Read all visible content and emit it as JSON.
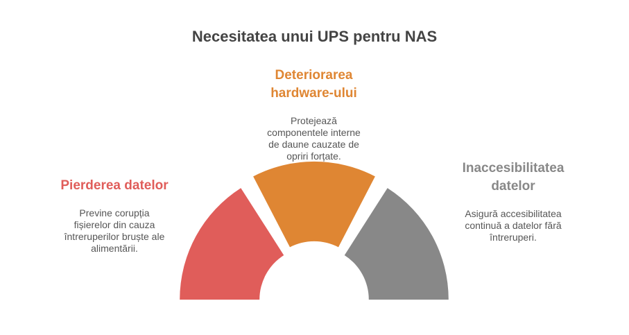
{
  "title": "Necesitatea unui UPS pentru NAS",
  "segments": [
    {
      "heading_lines": [
        "Pierderea datelor"
      ],
      "desc_lines": [
        "Previne corupția",
        "fișierelor din cauza",
        "întreruperilor bruște ale",
        "alimentării."
      ],
      "color": "#E05D5A"
    },
    {
      "heading_lines": [
        "Deteriorarea",
        "hardware-ului"
      ],
      "desc_lines": [
        "Protejează",
        "componentele interne",
        "de daune cauzate de",
        "opriri forțate."
      ],
      "color": "#DF8633"
    },
    {
      "heading_lines": [
        "Inaccesibilitatea",
        "datelor"
      ],
      "desc_lines": [
        "Asigură accesibilitatea",
        "continuă a datelor fără",
        "întreruperi."
      ],
      "color": "#888888"
    }
  ]
}
